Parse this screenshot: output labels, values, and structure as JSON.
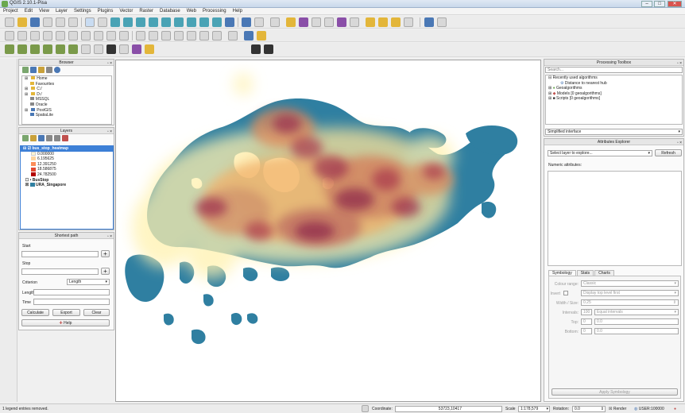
{
  "app": {
    "title": "QGIS 2.10.1-Pisa"
  },
  "window_controls": {
    "minimize": "–",
    "maximize": "□",
    "close": "✕"
  },
  "menu": [
    "Project",
    "Edit",
    "View",
    "Layer",
    "Settings",
    "Plugins",
    "Vector",
    "Raster",
    "Database",
    "Web",
    "Processing",
    "Help"
  ],
  "browser": {
    "title": "Browser",
    "items": [
      "Home",
      "Favourites",
      "C:/",
      "D:/",
      "MSSQL",
      "Oracle",
      "PostGIS",
      "SpatiaLite"
    ]
  },
  "layers": {
    "title": "Layers",
    "heatmap_layer": "bus_stop_heatmap",
    "legend": [
      {
        "value": "0.000000",
        "color": "#fff5d2"
      },
      {
        "value": "6.195625",
        "color": "#fdd49e"
      },
      {
        "value": "12.391250",
        "color": "#fc8d59"
      },
      {
        "value": "18.586875",
        "color": "#e34a33"
      },
      {
        "value": "24.782500",
        "color": "#b30000"
      }
    ],
    "point_layer": "BusStop",
    "polygon_layer": "URA_Singapore",
    "polygon_color": "#2f7fa1"
  },
  "shortest_path": {
    "title": "Shortest path",
    "start_label": "Start",
    "stop_label": "Stop",
    "criterion_label": "Criterion",
    "criterion_value": "Length",
    "length_label": "Length",
    "time_label": "Time",
    "calculate": "Calculate",
    "export": "Export",
    "clear": "Clear",
    "help": "Help"
  },
  "processing": {
    "title": "Processing Toolbox",
    "search_placeholder": "Search...",
    "tree": [
      {
        "label": "Recently used algorithms",
        "level": 0
      },
      {
        "label": "Distance to nearest hub",
        "level": 1
      },
      {
        "label": "Geoalgorithms",
        "level": 0
      },
      {
        "label": "Models [0 geoalgorithms]",
        "level": 0
      },
      {
        "label": "Scripts [0 geoalgorithms]",
        "level": 0
      }
    ],
    "mode": "Simplified interface"
  },
  "attributes": {
    "title": "Attributes Explorer",
    "select_layer": "Select layer to explore...",
    "refresh": "Refresh",
    "numeric_label": "Numeric attributes:",
    "tabs": [
      "Symbology",
      "Stats",
      "Charts"
    ],
    "colour_range_label": "Colour range:",
    "colour_range_value": "Classic",
    "invert_label": "Invert",
    "invert_value": "Display top level first",
    "width_size_label": "Width / Size:",
    "width_size_value": "0.25",
    "intervals_label": "Intervals:",
    "intervals_count": "100",
    "intervals_mode": "Equal intervals",
    "top_label": "Top:",
    "top_a": "0",
    "top_b": "0.0",
    "bottom_label": "Bottom:",
    "bottom_a": "0",
    "bottom_b": "0.0",
    "apply": "Apply Symbology"
  },
  "status": {
    "message": "1 legend entries removed.",
    "coordinate_label": "Coordinate:",
    "coordinate": "53723,10417",
    "scale_label": "Scale",
    "scale": "1:178,579",
    "rotation_label": "Rotation:",
    "rotation": "0.0",
    "render": "Render",
    "crs": "USER:100000"
  }
}
